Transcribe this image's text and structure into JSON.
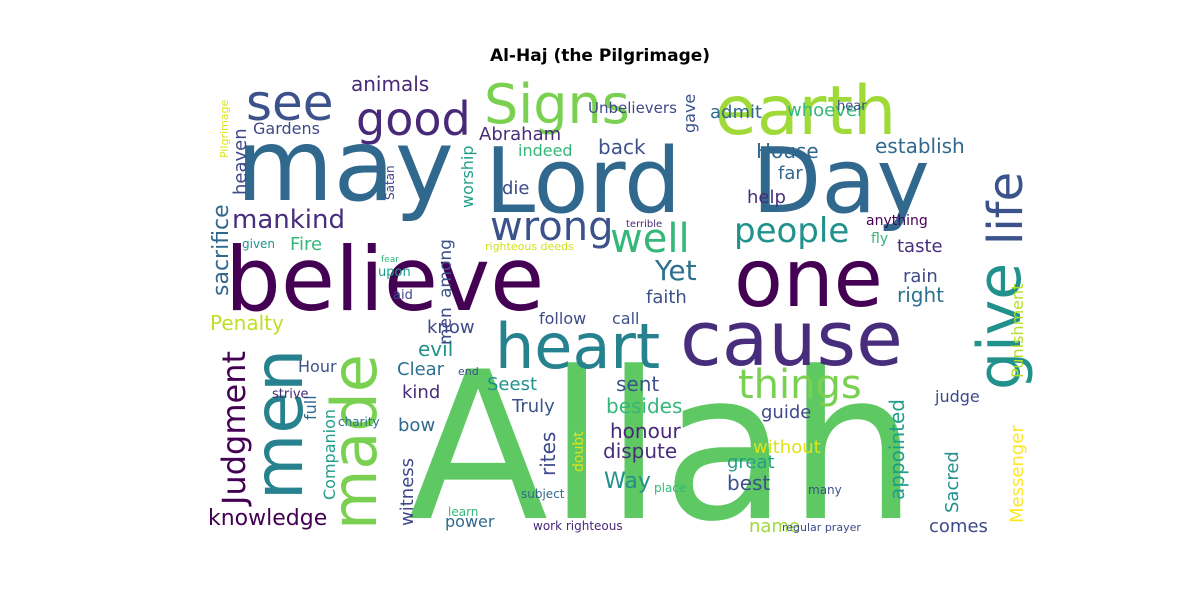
{
  "chart_data": {
    "type": "wordcloud",
    "title": "Al-Haj (the Pilgrimage)",
    "words": [
      {
        "text": "Allah",
        "color": "#5ec962"
      },
      {
        "text": "believe",
        "color": "#440154"
      },
      {
        "text": "may",
        "color": "#31688e"
      },
      {
        "text": "Lord",
        "color": "#31688e"
      },
      {
        "text": "Day",
        "color": "#31688e"
      },
      {
        "text": "one",
        "color": "#440154"
      },
      {
        "text": "cause",
        "color": "#472d7b"
      },
      {
        "text": "heart",
        "color": "#26828e"
      },
      {
        "text": "earth",
        "color": "#a0da39"
      },
      {
        "text": "Signs",
        "color": "#7ad151"
      },
      {
        "text": "men",
        "color": "#26828e"
      },
      {
        "text": "made",
        "color": "#7ad151"
      },
      {
        "text": "give",
        "color": "#21918c"
      },
      {
        "text": "life",
        "color": "#3b528b"
      },
      {
        "text": "see",
        "color": "#3b528b"
      },
      {
        "text": "good",
        "color": "#482878"
      },
      {
        "text": "wrong",
        "color": "#3b528b"
      },
      {
        "text": "well",
        "color": "#35b779"
      },
      {
        "text": "things",
        "color": "#7ad151"
      },
      {
        "text": "people",
        "color": "#21918c"
      },
      {
        "text": "Yet",
        "color": "#2c728e"
      },
      {
        "text": "mankind",
        "color": "#472d7b"
      },
      {
        "text": "Judgment",
        "color": "#440154"
      },
      {
        "text": "knowledge",
        "color": "#440154"
      },
      {
        "text": "sacrifice",
        "color": "#31688e"
      },
      {
        "text": "animals",
        "color": "#482878"
      },
      {
        "text": "Penalty",
        "color": "#bddf26"
      },
      {
        "text": "Fire",
        "color": "#35b779"
      },
      {
        "text": "Gardens",
        "color": "#3e4989"
      },
      {
        "text": "heaven",
        "color": "#3e4989"
      },
      {
        "text": "Pilgrimage",
        "color": "#dde318"
      },
      {
        "text": "Companion",
        "color": "#1f9e89"
      },
      {
        "text": "full",
        "color": "#31688e"
      },
      {
        "text": "Hour",
        "color": "#3b528b"
      },
      {
        "text": "charity",
        "color": "#2c728e"
      },
      {
        "text": "strive",
        "color": "#482878"
      },
      {
        "text": "witness",
        "color": "#3e4989"
      },
      {
        "text": "bow",
        "color": "#31688e"
      },
      {
        "text": "kind",
        "color": "#472d7b"
      },
      {
        "text": "Clear",
        "color": "#2c728e"
      },
      {
        "text": "end",
        "color": "#3b528b"
      },
      {
        "text": "evil",
        "color": "#21918c"
      },
      {
        "text": "know",
        "color": "#3e4989"
      },
      {
        "text": "among",
        "color": "#3b528b"
      },
      {
        "text": "men",
        "color": "#3e4989"
      },
      {
        "text": "worship",
        "color": "#1f9e89"
      },
      {
        "text": "Abraham",
        "color": "#472d7b"
      },
      {
        "text": "indeed",
        "color": "#35b779"
      },
      {
        "text": "die",
        "color": "#3e4989"
      },
      {
        "text": "back",
        "color": "#3b528b"
      },
      {
        "text": "House",
        "color": "#31688e"
      },
      {
        "text": "far",
        "color": "#31688e"
      },
      {
        "text": "help",
        "color": "#472d7b"
      },
      {
        "text": "establish",
        "color": "#31688e"
      },
      {
        "text": "admit",
        "color": "#31688e"
      },
      {
        "text": "whoever",
        "color": "#35b779"
      },
      {
        "text": "Unbelievers",
        "color": "#3e4989"
      },
      {
        "text": "gave",
        "color": "#3b528b"
      },
      {
        "text": "hear",
        "color": "#3e4989"
      },
      {
        "text": "anything",
        "color": "#440154"
      },
      {
        "text": "terrible",
        "color": "#482878"
      },
      {
        "text": "fly",
        "color": "#35b779"
      },
      {
        "text": "taste",
        "color": "#472d7b"
      },
      {
        "text": "rain",
        "color": "#3e4989"
      },
      {
        "text": "right",
        "color": "#2c728e"
      },
      {
        "text": "Punishment",
        "color": "#b5de2b"
      },
      {
        "text": "faith",
        "color": "#3b528b"
      },
      {
        "text": "follow",
        "color": "#3e4989"
      },
      {
        "text": "call",
        "color": "#3b528b"
      },
      {
        "text": "Satan",
        "color": "#3e4989"
      },
      {
        "text": "given",
        "color": "#21918c"
      },
      {
        "text": "fear",
        "color": "#35b779"
      },
      {
        "text": "upon",
        "color": "#1f9e89"
      },
      {
        "text": "aid",
        "color": "#3e4989"
      },
      {
        "text": "righteous deeds",
        "color": "#d0e11c"
      },
      {
        "text": "Seest",
        "color": "#21918c"
      },
      {
        "text": "Truly",
        "color": "#3b528b"
      },
      {
        "text": "sent",
        "color": "#3b528b"
      },
      {
        "text": "besides",
        "color": "#35b779"
      },
      {
        "text": "honour",
        "color": "#482878"
      },
      {
        "text": "dispute",
        "color": "#472d7b"
      },
      {
        "text": "Way",
        "color": "#21918c"
      },
      {
        "text": "rites",
        "color": "#3e4989"
      },
      {
        "text": "doubt",
        "color": "#dde318"
      },
      {
        "text": "subject",
        "color": "#31688e"
      },
      {
        "text": "place",
        "color": "#35b779"
      },
      {
        "text": "learn",
        "color": "#35b779"
      },
      {
        "text": "power",
        "color": "#31688e"
      },
      {
        "text": "work righteous",
        "color": "#482878"
      },
      {
        "text": "guide",
        "color": "#3e4989"
      },
      {
        "text": "without",
        "color": "#dde318"
      },
      {
        "text": "great",
        "color": "#1f9e89"
      },
      {
        "text": "best",
        "color": "#3b528b"
      },
      {
        "text": "name",
        "color": "#a0da39"
      },
      {
        "text": "many",
        "color": "#3b528b"
      },
      {
        "text": "regular prayer",
        "color": "#3e4989"
      },
      {
        "text": "appointed",
        "color": "#1f9e89"
      },
      {
        "text": "Sacred",
        "color": "#21918c"
      },
      {
        "text": "judge",
        "color": "#3e4989"
      },
      {
        "text": "Messenger",
        "color": "#fde725"
      },
      {
        "text": "comes",
        "color": "#3e4989"
      }
    ]
  }
}
